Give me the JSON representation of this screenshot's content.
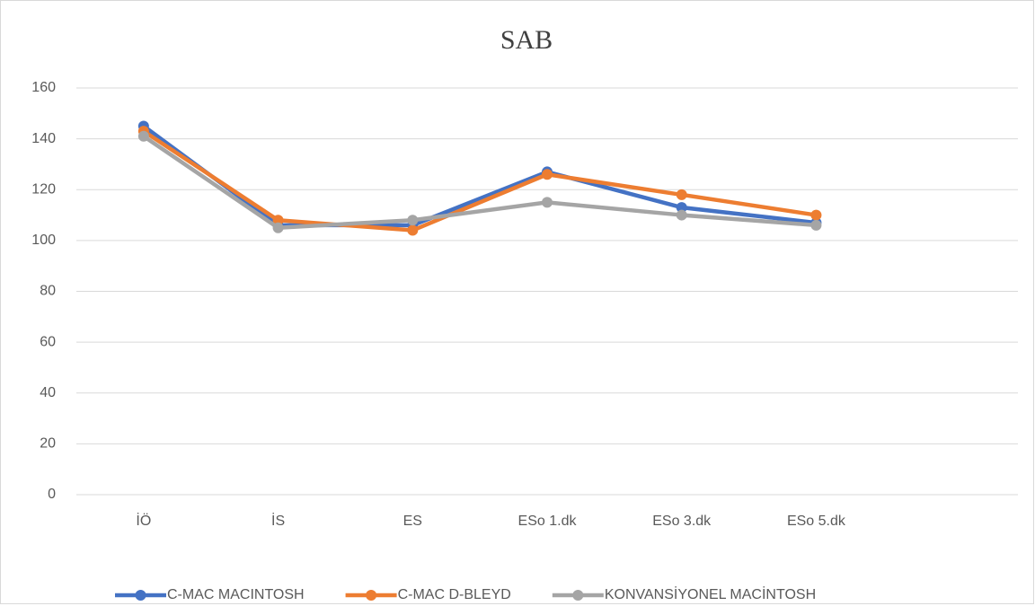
{
  "chart_data": {
    "type": "line",
    "title": "SAB",
    "categories": [
      "İÖ",
      "İS",
      "ES",
      "ESo 1.dk",
      "ESo 3.dk",
      "ESo 5.dk",
      null
    ],
    "series": [
      {
        "name": "C-MAC MACINTOSH",
        "color": "#4472c4",
        "values": [
          145,
          106,
          106,
          127,
          113,
          107,
          null
        ]
      },
      {
        "name": "C-MAC D-BLEYD",
        "color": "#ed7d31",
        "values": [
          143,
          108,
          104,
          126,
          118,
          110,
          null
        ]
      },
      {
        "name": "KONVANSİYONEL MACİNTOSH",
        "color": "#a5a5a5",
        "values": [
          141,
          105,
          108,
          115,
          110,
          106,
          null
        ]
      }
    ],
    "ylim": [
      0,
      160
    ],
    "yticks": [
      0,
      20,
      40,
      60,
      80,
      100,
      120,
      140,
      160
    ],
    "grid": true,
    "legend": "bottom"
  }
}
